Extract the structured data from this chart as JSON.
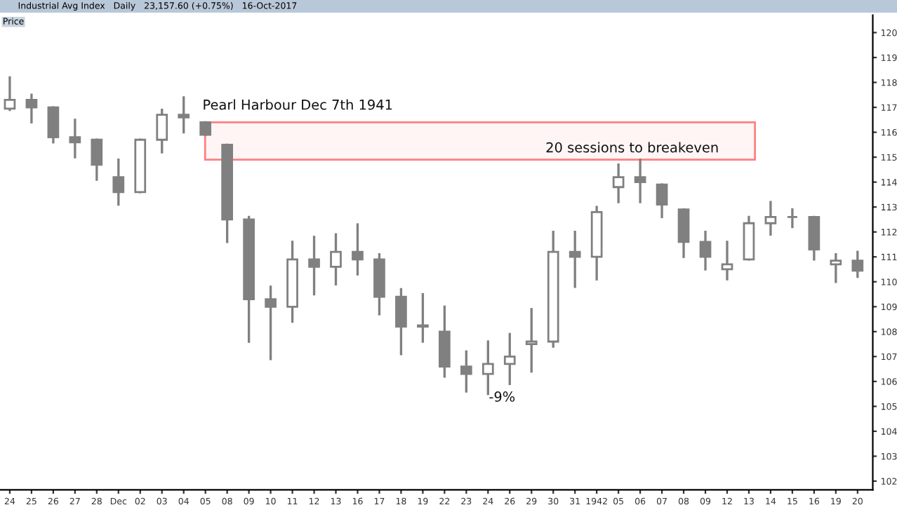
{
  "chart_data": {
    "type": "candlestick",
    "title": "Industrial Avg Index   Daily   23,157.60 (+0.75%)   16-Oct-2017",
    "categories": [
      "24",
      "25",
      "26",
      "27",
      "28",
      "Dec",
      "02",
      "03",
      "04",
      "05",
      "08",
      "09",
      "10",
      "11",
      "12",
      "13",
      "16",
      "17",
      "18",
      "19",
      "22",
      "23",
      "24",
      "26",
      "29",
      "30",
      "31",
      "1942",
      "05",
      "06",
      "07",
      "08",
      "09",
      "12",
      "13",
      "14",
      "15",
      "16",
      "19",
      "20"
    ],
    "ohlc": [
      [
        116.95,
        118.2,
        116.9,
        117.3
      ],
      [
        117.3,
        117.5,
        116.4,
        117.0
      ],
      [
        117.0,
        117.0,
        115.6,
        115.8
      ],
      [
        115.8,
        116.5,
        115.0,
        115.6
      ],
      [
        115.7,
        115.7,
        114.1,
        114.7
      ],
      [
        114.2,
        114.9,
        113.1,
        113.6
      ],
      [
        113.6,
        115.7,
        113.6,
        115.7
      ],
      [
        115.7,
        116.9,
        115.2,
        116.7
      ],
      [
        116.7,
        117.4,
        116.0,
        116.6
      ],
      [
        116.4,
        116.4,
        115.9,
        115.9
      ],
      [
        115.5,
        115.5,
        111.6,
        112.5
      ],
      [
        112.5,
        112.6,
        107.6,
        109.3
      ],
      [
        109.3,
        109.8,
        106.9,
        109.0
      ],
      [
        109.0,
        111.6,
        108.4,
        110.9
      ],
      [
        110.9,
        111.8,
        109.5,
        110.6
      ],
      [
        110.6,
        111.9,
        109.9,
        111.2
      ],
      [
        111.2,
        112.3,
        110.3,
        110.9
      ],
      [
        110.9,
        111.1,
        108.7,
        109.4
      ],
      [
        109.4,
        109.7,
        107.1,
        108.2
      ],
      [
        108.2,
        109.5,
        107.6,
        108.25
      ],
      [
        108.0,
        109.0,
        106.2,
        106.6
      ],
      [
        106.6,
        107.2,
        105.6,
        106.3
      ],
      [
        106.3,
        107.6,
        105.5,
        106.7
      ],
      [
        106.7,
        107.9,
        105.9,
        107.0
      ],
      [
        107.5,
        108.9,
        106.4,
        107.6
      ],
      [
        107.6,
        112.0,
        107.4,
        111.2
      ],
      [
        111.2,
        112.0,
        109.8,
        111.0
      ],
      [
        111.0,
        113.0,
        110.1,
        112.8
      ],
      [
        113.8,
        114.7,
        113.2,
        114.2
      ],
      [
        114.2,
        114.9,
        113.2,
        114.0
      ],
      [
        113.9,
        113.9,
        112.6,
        113.1
      ],
      [
        112.9,
        112.9,
        111.0,
        111.6
      ],
      [
        111.6,
        112.0,
        110.5,
        111.0
      ],
      [
        110.5,
        111.6,
        110.1,
        110.7
      ],
      [
        110.9,
        112.6,
        110.9,
        112.35
      ],
      [
        112.35,
        113.2,
        111.9,
        112.6
      ],
      [
        112.6,
        112.9,
        112.2,
        112.6
      ],
      [
        112.6,
        112.6,
        110.9,
        111.3
      ],
      [
        110.7,
        111.1,
        110.0,
        110.85
      ],
      [
        110.85,
        111.2,
        110.2,
        110.45
      ]
    ],
    "color": "#808080",
    "ylim": [
      101.65,
      120.7
    ],
    "yticks": [
      {
        "value": 102,
        "label": "102"
      },
      {
        "value": 103,
        "label": "103"
      },
      {
        "value": 104,
        "label": "104"
      },
      {
        "value": 105,
        "label": "105"
      },
      {
        "value": 106,
        "label": "106"
      },
      {
        "value": 107,
        "label": "107"
      },
      {
        "value": 108,
        "label": "108"
      },
      {
        "value": 109,
        "label": "109"
      },
      {
        "value": 110,
        "label": "110"
      },
      {
        "value": 111,
        "label": "111"
      },
      {
        "value": 112,
        "label": "112"
      },
      {
        "value": 113,
        "label": "113"
      },
      {
        "value": 114,
        "label": "114"
      },
      {
        "value": 115,
        "label": "115"
      },
      {
        "value": 116,
        "label": "116"
      },
      {
        "value": 117,
        "label": "117"
      },
      {
        "value": 118,
        "label": "118"
      },
      {
        "value": 119,
        "label": "119"
      },
      {
        "value": 120,
        "label": "120"
      }
    ],
    "bands": [
      {
        "axis": "y",
        "from": 114.9,
        "to": 116.4,
        "color": "#ff8080"
      }
    ],
    "annotations": [
      "Price",
      "Pearl Harbour Dec 7th 1941",
      "20 sessions to breakeven",
      "-9%"
    ],
    "grid": false,
    "legend": false
  }
}
